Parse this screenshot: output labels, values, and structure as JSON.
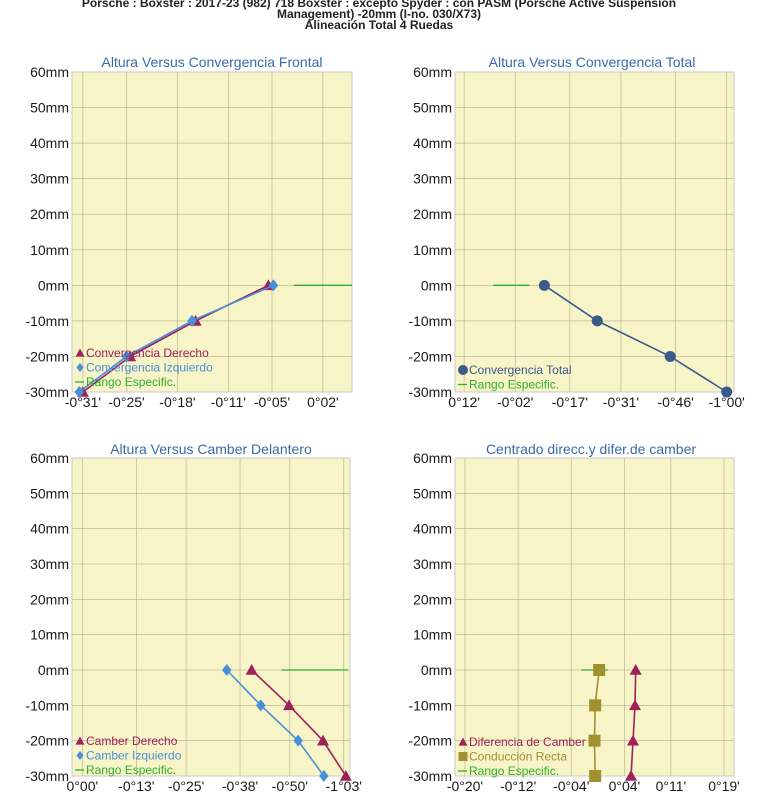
{
  "header": {
    "line1": "Porsche : Boxster : 2017-23 (982) 718 Boxster : excepto Spyder : con PASM (Porsche Active Suspension",
    "line2": "Management) -20mm (I-no. 030/X73)",
    "line3": "Alineación Total 4 Ruedas"
  },
  "colors": {
    "derecho": "#a0205a",
    "izquierdo": "#4a90d8",
    "total": "#3a5a8a",
    "rango": "#30b030",
    "recta": "#a09030"
  },
  "chart_data": [
    {
      "type": "line",
      "title": "Altura Versus Convergencia Frontal",
      "y_ticks": [
        "60mm",
        "50mm",
        "40mm",
        "30mm",
        "20mm",
        "10mm",
        "0mm",
        "-10mm",
        "-20mm",
        "-30mm"
      ],
      "ylim": [
        -30,
        60
      ],
      "x_ticks": [
        "-0°31'",
        "-0°25'",
        "-0°18'",
        "-0°11'",
        "-0°05'",
        "0°02'"
      ],
      "x_tick_values": [
        -31,
        -25,
        -18,
        -11,
        -5,
        2
      ],
      "xlim": [
        -32.5,
        6
      ],
      "series": [
        {
          "name": "Convergencia Derecho",
          "color": "derecho",
          "marker": "triangle",
          "x": [
            -31,
            -24.5,
            -15.5,
            -5.5
          ],
          "y": [
            -30,
            -20,
            -10,
            0
          ]
        },
        {
          "name": "Convergencia Izquierdo",
          "color": "izquierdo",
          "marker": "diamond",
          "x": [
            -31.5,
            -25,
            -16,
            -4.8
          ],
          "y": [
            -30,
            -20,
            -10,
            0
          ]
        }
      ],
      "rango": {
        "name": "Rango Especific.",
        "x": [
          -2,
          6
        ],
        "y": [
          0,
          0
        ]
      }
    },
    {
      "type": "line",
      "title": "Altura Versus Convergencia Total",
      "y_ticks": [
        "60mm",
        "50mm",
        "40mm",
        "30mm",
        "20mm",
        "10mm",
        "0mm",
        "-10mm",
        "-20mm",
        "-30mm"
      ],
      "ylim": [
        -30,
        60
      ],
      "x_ticks": [
        "0°12'",
        "-0°02'",
        "-0°17'",
        "-0°31'",
        "-0°46'",
        "-1°00'"
      ],
      "x_tick_values": [
        12,
        -2,
        -17,
        -31,
        -46,
        -60
      ],
      "xlim": [
        14.5,
        -62
      ],
      "series": [
        {
          "name": "Convergencia Total",
          "color": "total",
          "marker": "circle",
          "x": [
            -10,
            -24.5,
            -44.5,
            -60
          ],
          "y": [
            0,
            -10,
            -20,
            -30
          ]
        }
      ],
      "rango": {
        "name": "Rango Especific.",
        "x": [
          4,
          -6
        ],
        "y": [
          0,
          0
        ]
      }
    },
    {
      "type": "line",
      "title": "Altura Versus Camber Delantero",
      "y_ticks": [
        "60mm",
        "50mm",
        "40mm",
        "30mm",
        "20mm",
        "10mm",
        "0mm",
        "-10mm",
        "-20mm",
        "-30mm"
      ],
      "ylim": [
        -30,
        60
      ],
      "x_ticks": [
        "0°00'",
        "-0°13'",
        "-0°25'",
        "-0°38'",
        "-0°50'",
        "-1°03'"
      ],
      "x_tick_values": [
        0,
        -13,
        -25,
        -38,
        -50,
        -63
      ],
      "xlim": [
        2.5,
        -64.5
      ],
      "series": [
        {
          "name": "Camber Derecho",
          "color": "derecho",
          "marker": "triangle",
          "x": [
            -40.8,
            -49.8,
            -58,
            -63.5
          ],
          "y": [
            0,
            -10,
            -20,
            -30
          ]
        },
        {
          "name": "Camber Izquierdo",
          "color": "izquierdo",
          "marker": "diamond",
          "x": [
            -34.8,
            -43,
            -52,
            -58.2
          ],
          "y": [
            0,
            -10,
            -20,
            -30
          ]
        }
      ],
      "rango": {
        "name": "Rango Especific.",
        "x": [
          -48,
          -64
        ],
        "y": [
          0,
          0
        ]
      }
    },
    {
      "type": "line",
      "title": "Centrado direcc.y difer.de camber",
      "y_ticks": [
        "60mm",
        "50mm",
        "40mm",
        "30mm",
        "20mm",
        "10mm",
        "0mm",
        "-10mm",
        "-20mm",
        "-30mm"
      ],
      "ylim": [
        -30,
        60
      ],
      "x_ticks": [
        "-0°20'",
        "-0°12'",
        "-0°04'",
        "0°04'",
        "0°11'",
        "0°19'"
      ],
      "x_tick_values": [
        -20,
        -12,
        -4,
        4,
        11,
        19
      ],
      "xlim": [
        -21.5,
        20.5
      ],
      "series": [
        {
          "name": "Diferencia de Camber",
          "color": "derecho",
          "marker": "triangle",
          "x": [
            5.7,
            5.6,
            5.3,
            5.0
          ],
          "y": [
            0,
            -10,
            -20,
            -30
          ]
        },
        {
          "name": "Conducción Recta",
          "color": "recta",
          "marker": "square",
          "x": [
            0.2,
            -0.4,
            -0.5,
            -0.4
          ],
          "y": [
            0,
            -10,
            -20,
            -30
          ]
        }
      ],
      "rango": {
        "name": "Rango Especific.",
        "x": [
          -2.5,
          1.5
        ],
        "y": [
          0,
          0
        ]
      }
    }
  ]
}
